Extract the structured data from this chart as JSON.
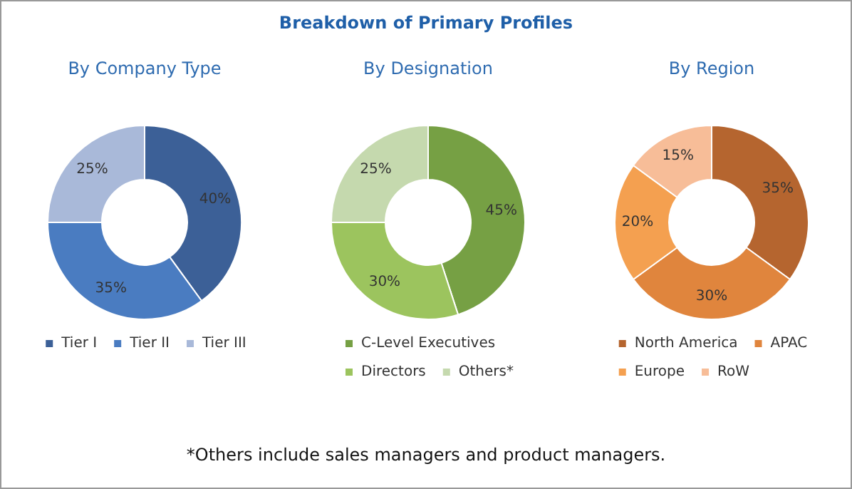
{
  "chart_data": [
    {
      "type": "other",
      "title": "Breakdown of Primary Profiles",
      "annotations": [
        "*Others include sales managers and product managers."
      ]
    },
    {
      "type": "donut",
      "title": "By Company Type",
      "categories": [
        "Tier I",
        "Tier II",
        "Tier III"
      ],
      "values": [
        40,
        35,
        25
      ],
      "value_labels": [
        "40%",
        "35%",
        "25%"
      ],
      "colors": [
        "#3c6097",
        "#4a7cc1",
        "#a9b9d9"
      ],
      "legend": "bottom"
    },
    {
      "type": "donut",
      "title": "By Designation",
      "categories": [
        "C-Level Executives",
        "Directors",
        "Others*"
      ],
      "values": [
        45,
        30,
        25
      ],
      "value_labels": [
        "45%",
        "30%",
        "25%"
      ],
      "colors": [
        "#76a044",
        "#9cc45e",
        "#c5d9ae"
      ],
      "legend": "bottom"
    },
    {
      "type": "donut",
      "title": "By Region",
      "categories": [
        "North America",
        "APAC",
        "Europe",
        "RoW"
      ],
      "values": [
        35,
        30,
        20,
        15
      ],
      "value_labels": [
        "35%",
        "30%",
        "20%",
        "15%"
      ],
      "colors": [
        "#b5652f",
        "#e0853d",
        "#f4a050",
        "#f7bd98"
      ],
      "legend": "bottom"
    }
  ]
}
